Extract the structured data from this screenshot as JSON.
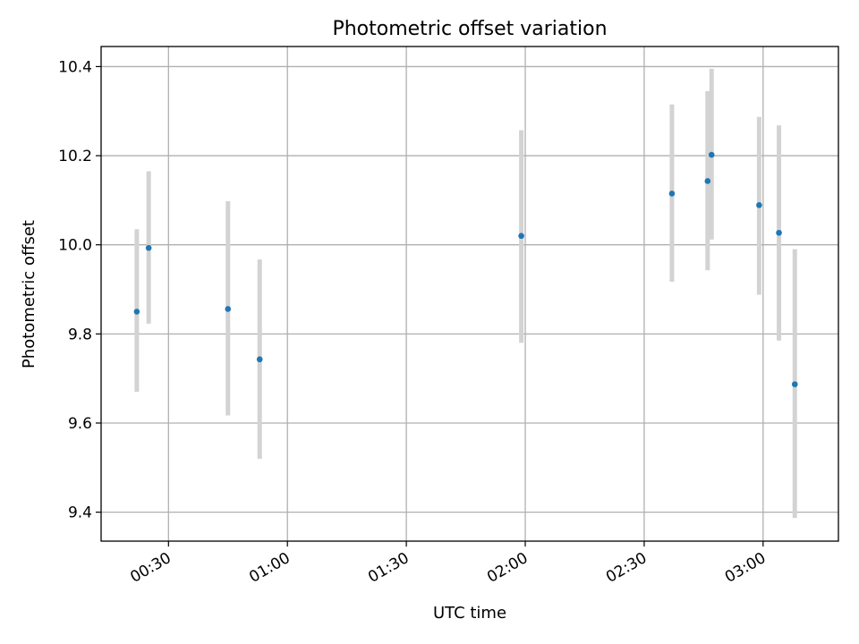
{
  "chart_data": {
    "type": "scatter",
    "title": "Photometric offset variation",
    "xlabel": "UTC time",
    "ylabel": "Photometric offset",
    "x_axis_type": "time",
    "xlim": [
      "00:13",
      "03:19"
    ],
    "ylim": [
      9.335,
      10.445
    ],
    "grid": true,
    "marker_color": "#1f77b4",
    "errorbar_color": "#d3d3d3",
    "x_ticks": [
      "00:30",
      "01:00",
      "01:30",
      "02:00",
      "02:30",
      "03:00"
    ],
    "y_ticks": [
      "9.4",
      "9.6",
      "9.8",
      "10.0",
      "10.2",
      "10.4"
    ],
    "points": [
      {
        "x": "00:22",
        "y": 9.85,
        "y_low": 9.67,
        "y_high": 10.035
      },
      {
        "x": "00:25",
        "y": 9.993,
        "y_low": 9.823,
        "y_high": 10.165
      },
      {
        "x": "00:45",
        "y": 9.856,
        "y_low": 9.617,
        "y_high": 10.098
      },
      {
        "x": "00:53",
        "y": 9.743,
        "y_low": 9.52,
        "y_high": 9.967
      },
      {
        "x": "01:59",
        "y": 10.02,
        "y_low": 9.78,
        "y_high": 10.257
      },
      {
        "x": "02:37",
        "y": 10.115,
        "y_low": 9.917,
        "y_high": 10.315
      },
      {
        "x": "02:46",
        "y": 10.143,
        "y_low": 9.943,
        "y_high": 10.345
      },
      {
        "x": "02:47",
        "y": 10.202,
        "y_low": 10.012,
        "y_high": 10.395
      },
      {
        "x": "02:59",
        "y": 10.089,
        "y_low": 9.888,
        "y_high": 10.287
      },
      {
        "x": "03:04",
        "y": 10.027,
        "y_low": 9.785,
        "y_high": 10.268
      },
      {
        "x": "03:08",
        "y": 9.687,
        "y_low": 9.387,
        "y_high": 9.99
      }
    ]
  }
}
